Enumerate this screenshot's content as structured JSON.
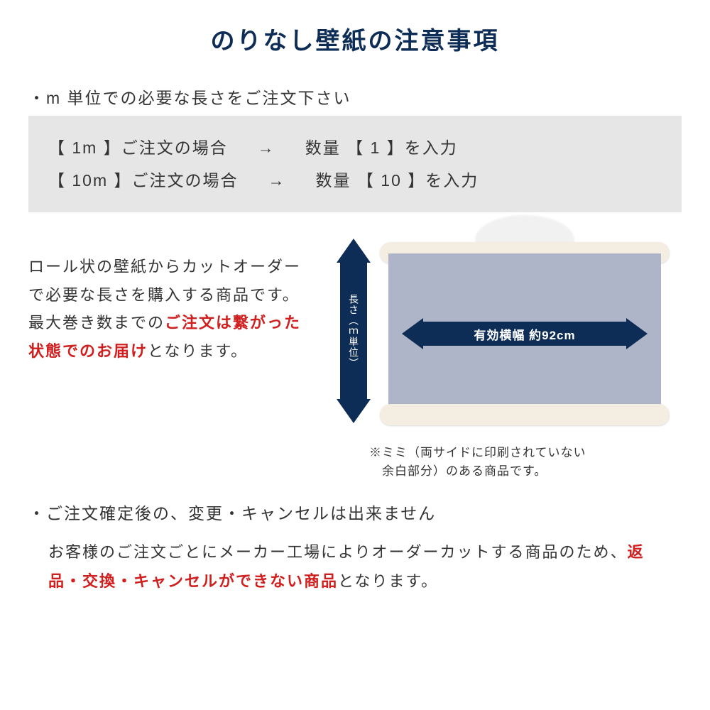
{
  "colors": {
    "title": "#0d2d57",
    "arrow": "#0d2d57",
    "red": "#d01f1f",
    "example_bg": "#e6e6e6",
    "paper": "#aeb5c8",
    "roll": "#f4eee2",
    "text": "#333333",
    "bg": "#ffffff"
  },
  "title": "のりなし壁紙の注意事項",
  "section1": {
    "heading": "・m 単位での必要な長さをご注文下さい",
    "examples": [
      {
        "length": "【   1m  】ご注文の場合",
        "arrow": "→",
        "qty": "数量 【  1  】を入力"
      },
      {
        "length": "【 10m 】ご注文の場合",
        "arrow": "→",
        "qty": "数量 【  10  】を入力"
      }
    ],
    "desc_pre": "ロール状の壁紙からカットオーダーで必要な長さを購入する商品です。最大巻き数までの",
    "desc_red": "ご注文は繋がった状態でのお届け",
    "desc_post": "となります。",
    "v_arrow_label": "長さ（ｍ単位）",
    "h_arrow_label": "有効横幅 約92cm",
    "footnote": "※ミミ（両サイドに印刷されていない\n　余白部分）のある商品です。"
  },
  "section2": {
    "heading": "・ご注文確定後の、変更・キャンセルは出来ません",
    "body_pre": "お客様のご注文ごとにメーカー工場によりオーダーカットする商品のため、",
    "body_red": "返品・交換・キャンセルができない商品",
    "body_post": "となります。"
  }
}
